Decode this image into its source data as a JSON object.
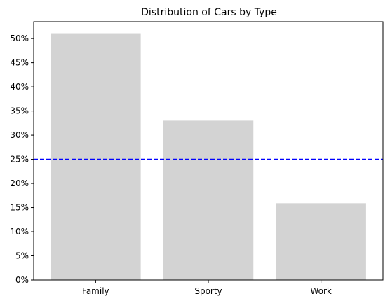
{
  "chart_data": {
    "type": "bar",
    "title": "Distribution of Cars by Type",
    "xlabel": "",
    "ylabel": "",
    "categories": [
      "Family",
      "Sporty",
      "Work"
    ],
    "values": [
      51.1,
      33.0,
      15.9
    ],
    "value_unit": "%",
    "ylim": [
      0,
      53.5
    ],
    "yticks": [
      0,
      5,
      10,
      15,
      20,
      25,
      30,
      35,
      40,
      45,
      50
    ],
    "ytick_labels": [
      "0%",
      "5%",
      "10%",
      "15%",
      "20%",
      "25%",
      "30%",
      "35%",
      "40%",
      "45%",
      "50%"
    ],
    "reference_line": {
      "value": 25,
      "style": "dashed",
      "color": "#0000ff"
    },
    "bar_color": "#d3d3d3",
    "grid": false,
    "legend": "none"
  }
}
